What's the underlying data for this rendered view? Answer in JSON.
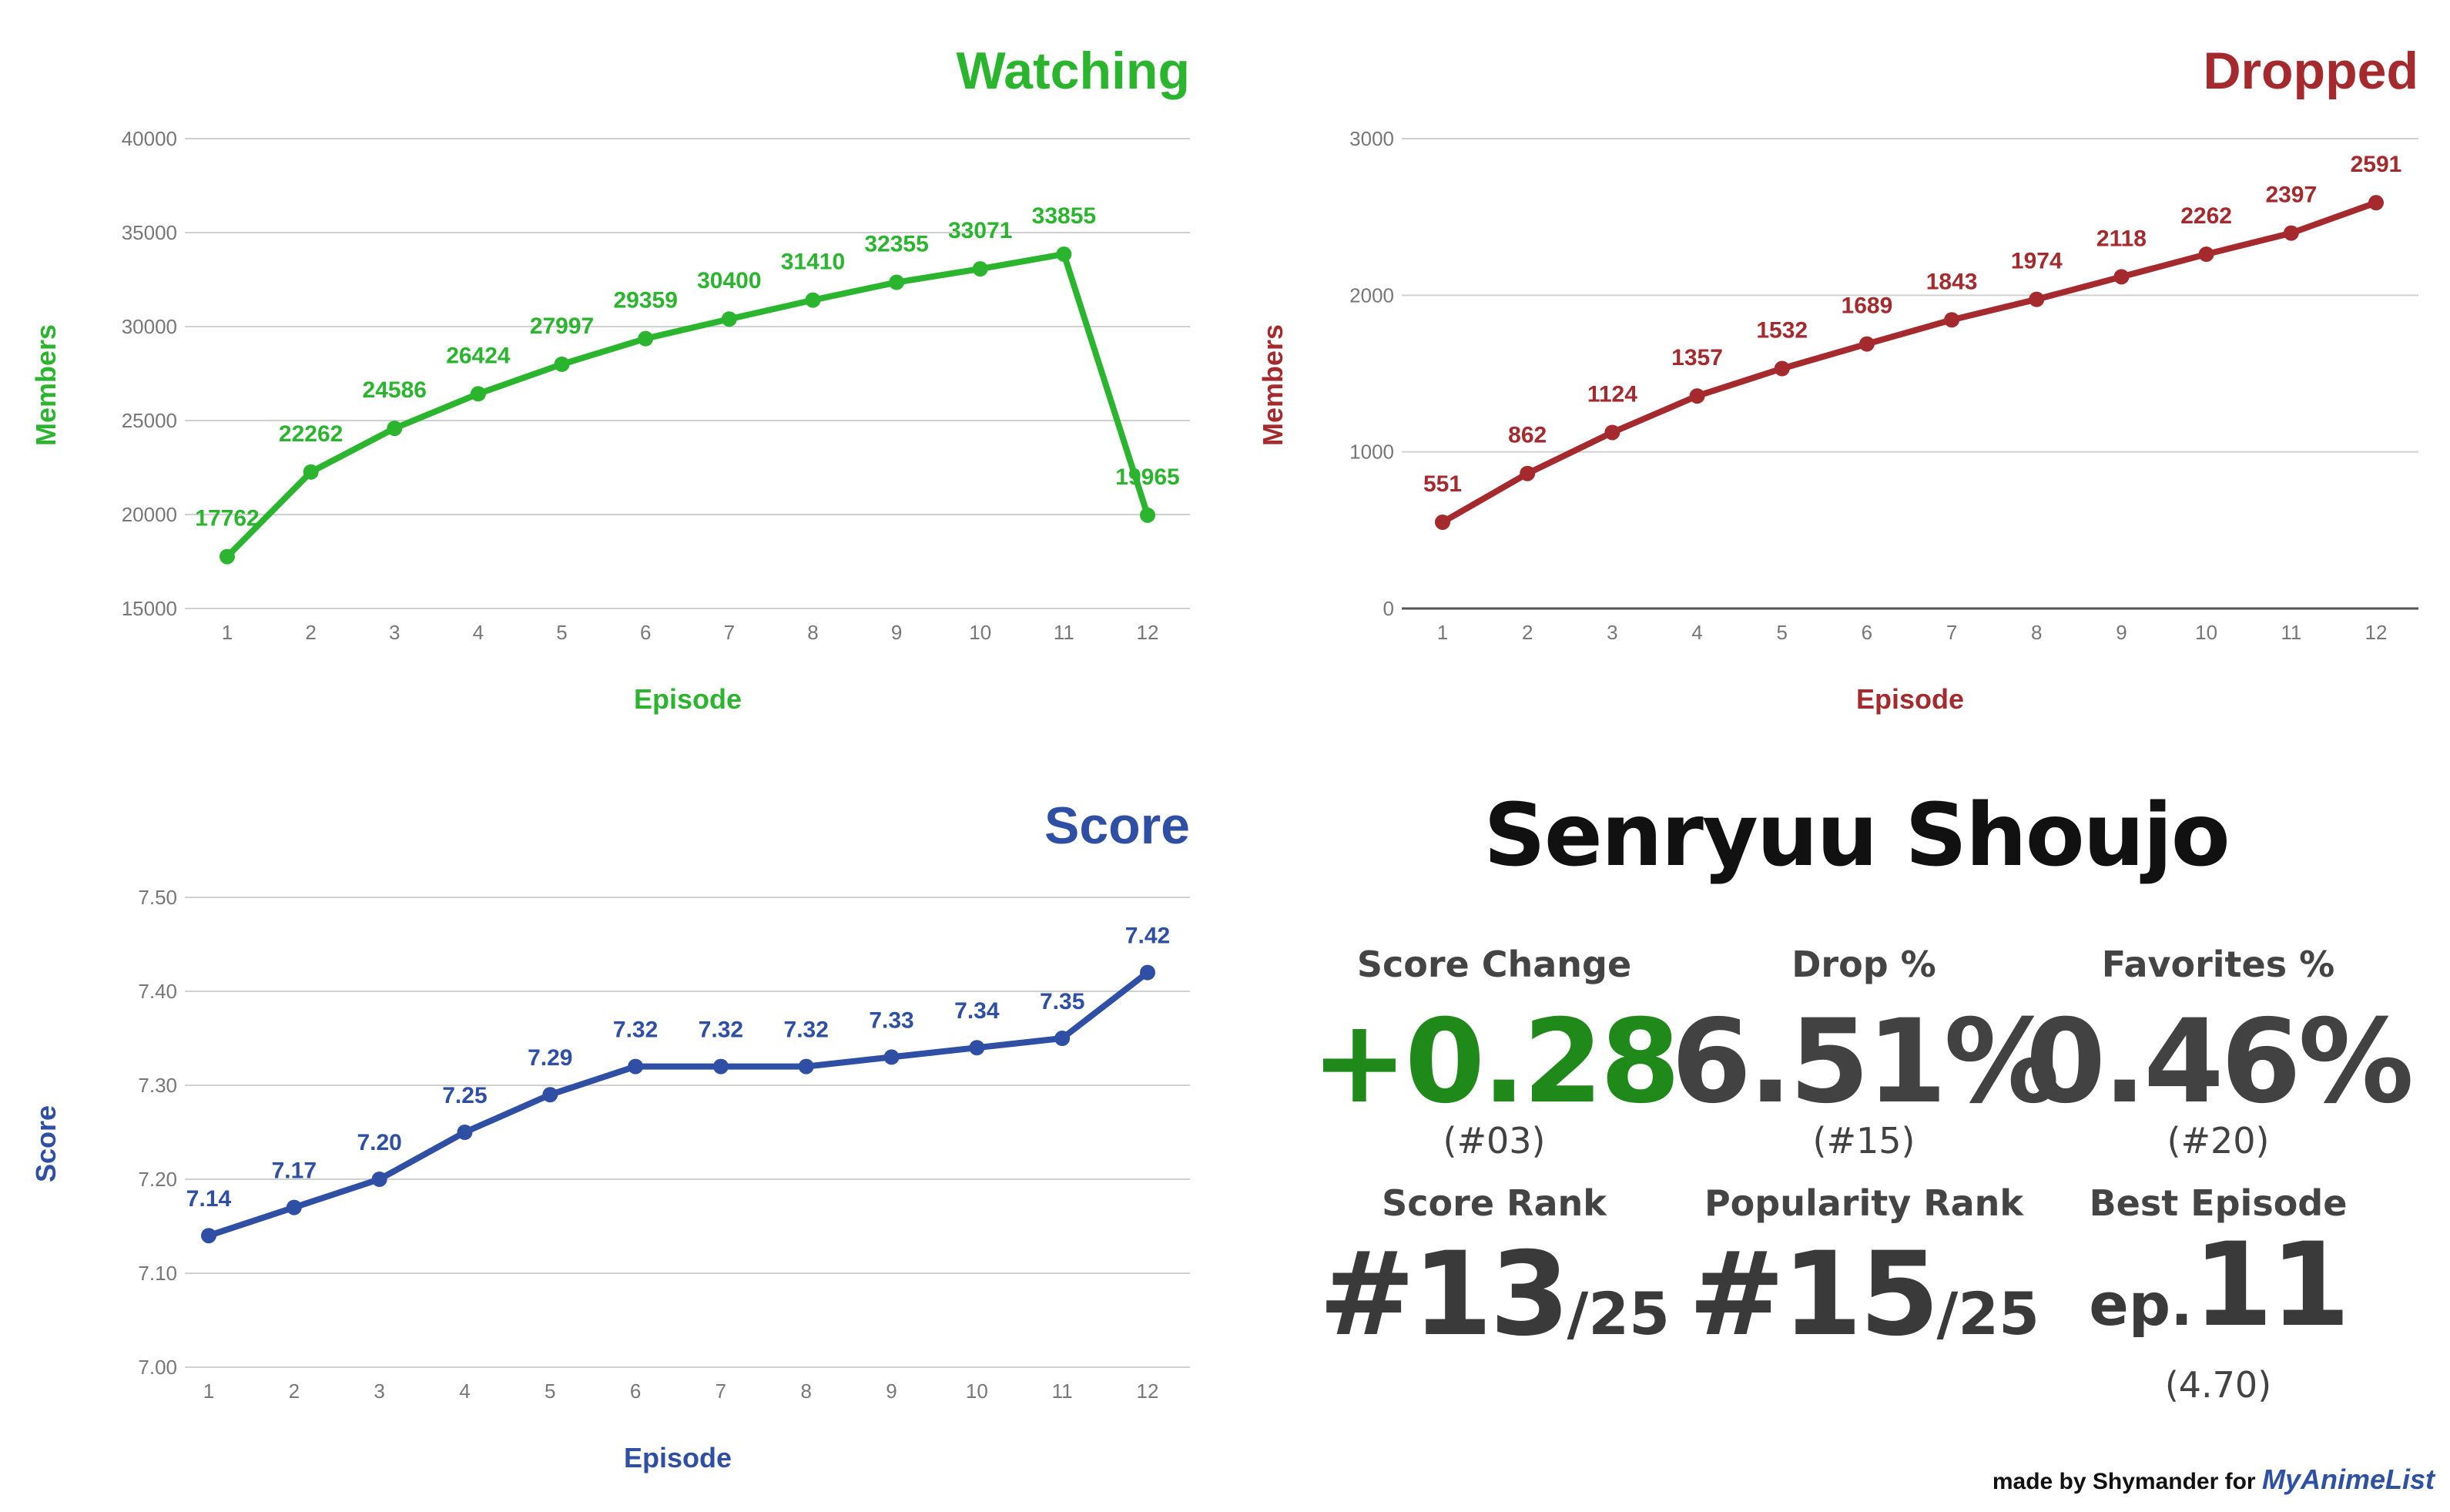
{
  "chart_data": [
    {
      "type": "line",
      "title": "Watching",
      "xlabel": "Episode",
      "ylabel": "Members",
      "color": "#2bb52e",
      "x": [
        1,
        2,
        3,
        4,
        5,
        6,
        7,
        8,
        9,
        10,
        11,
        12
      ],
      "values": [
        17762,
        22262,
        24586,
        26424,
        27997,
        29359,
        30400,
        31410,
        32355,
        33071,
        33855,
        19965
      ],
      "ylim": [
        15000,
        40000
      ],
      "yticks": [
        "15000",
        "20000",
        "25000",
        "30000",
        "35000",
        "40000"
      ],
      "xticks": [
        "1",
        "2",
        "3",
        "4",
        "5",
        "6",
        "7",
        "8",
        "9",
        "10",
        "11",
        "12"
      ],
      "data_labels": [
        "17762",
        "22262",
        "24586",
        "26424",
        "27997",
        "29359",
        "30400",
        "31410",
        "32355",
        "33071",
        "33855",
        "19965"
      ],
      "grid": true
    },
    {
      "type": "line",
      "title": "Dropped",
      "xlabel": "Episode",
      "ylabel": "Members",
      "color": "#a52a2e",
      "x": [
        1,
        2,
        3,
        4,
        5,
        6,
        7,
        8,
        9,
        10,
        11,
        12
      ],
      "values": [
        551,
        862,
        1124,
        1357,
        1532,
        1689,
        1843,
        1974,
        2118,
        2262,
        2397,
        2591
      ],
      "ylim": [
        0,
        3000
      ],
      "yticks": [
        "0",
        "1000",
        "2000",
        "3000"
      ],
      "xticks": [
        "1",
        "2",
        "3",
        "4",
        "5",
        "6",
        "7",
        "8",
        "9",
        "10",
        "11",
        "12"
      ],
      "data_labels": [
        "551",
        "862",
        "1124",
        "1357",
        "1532",
        "1689",
        "1843",
        "1974",
        "2118",
        "2262",
        "2397",
        "2591"
      ],
      "grid": true
    },
    {
      "type": "line",
      "title": "Score",
      "xlabel": "Episode",
      "ylabel": "Score",
      "color": "#2e4fa3",
      "x": [
        1,
        2,
        3,
        4,
        5,
        6,
        7,
        8,
        9,
        10,
        11,
        12
      ],
      "values": [
        7.14,
        7.17,
        7.2,
        7.25,
        7.29,
        7.32,
        7.32,
        7.32,
        7.33,
        7.34,
        7.35,
        7.42
      ],
      "ylim": [
        7.0,
        7.5
      ],
      "yticks": [
        "7.00",
        "7.10",
        "7.20",
        "7.30",
        "7.40",
        "7.50"
      ],
      "xticks": [
        "1",
        "2",
        "3",
        "4",
        "5",
        "6",
        "7",
        "8",
        "9",
        "10",
        "11",
        "12"
      ],
      "data_labels": [
        "7.14",
        "7.17",
        "7.20",
        "7.25",
        "7.29",
        "7.32",
        "7.32",
        "7.32",
        "7.33",
        "7.34",
        "7.35",
        "7.42"
      ],
      "grid": true
    }
  ],
  "summary": {
    "title": "Senryuu Shoujo",
    "score_change": {
      "label": "Score Change",
      "value": "+0.28",
      "rank": "(#03)",
      "color": "#1f8a1a"
    },
    "drop_pct": {
      "label": "Drop %",
      "value": "6.51%",
      "rank": "(#15)"
    },
    "favorites_pct": {
      "label": "Favorites %",
      "value": "0.46%",
      "rank": "(#20)"
    },
    "score_rank": {
      "label": "Score Rank",
      "value": "#13",
      "total": "/25"
    },
    "popularity_rank": {
      "label": "Popularity Rank",
      "value": "#15",
      "total": "/25"
    },
    "best_episode": {
      "label": "Best Episode",
      "prefix": "ep.",
      "value": "11",
      "score": "(4.70)"
    }
  },
  "credit": {
    "text": "made by Shymander for",
    "brand": "MyAnimeList"
  }
}
